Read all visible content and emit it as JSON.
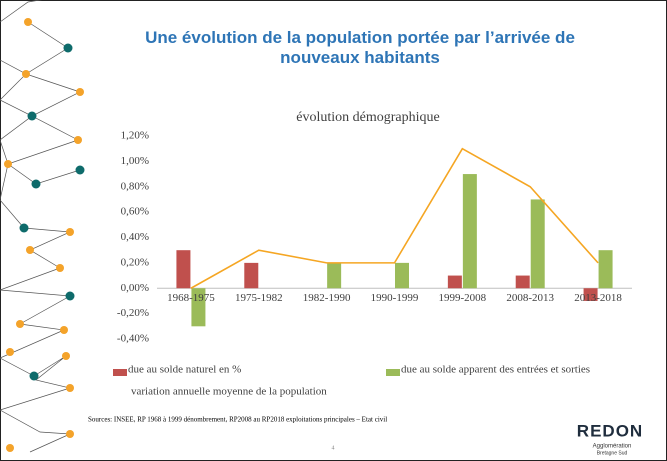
{
  "slide": {
    "title": "Une évolution de la population portée par l’arrivée de nouveaux habitants",
    "sources": "Sources: INSEE, RP 1968 à 1999 dénombrement, RP2008 au RP2018 exploitations principales – Etat civil",
    "page_number": "4",
    "logo": {
      "name": "REDON",
      "line1": "Agglomération",
      "line2": "Bretagne Sud"
    }
  },
  "chart_data": {
    "type": "bar",
    "title": "évolution démographique",
    "categories": [
      "1968-1975",
      "1975-1982",
      "1982-1990",
      "1990-1999",
      "1999-2008",
      "2008-2013",
      "2013-2018"
    ],
    "series": [
      {
        "name": "due au solde naturel en %",
        "color": "#c0504d",
        "type": "bar",
        "values": [
          0.3,
          0.2,
          0,
          0,
          0.1,
          0.1,
          -0.1
        ]
      },
      {
        "name": "due au solde apparent des entrées et sorties",
        "color": "#9bbb59",
        "type": "bar",
        "values": [
          -0.3,
          0,
          0.2,
          0.2,
          0.9,
          0.7,
          0.3
        ]
      },
      {
        "name": "variation annuelle moyenne de la population",
        "color": "#f5a623",
        "type": "line",
        "values": [
          0,
          0.3,
          0.2,
          0.2,
          1.1,
          0.8,
          0.2
        ]
      }
    ],
    "ylim": [
      -0.4,
      1.2
    ],
    "yticks": [
      {
        "value": -0.4,
        "label": "-0,40%"
      },
      {
        "value": -0.2,
        "label": "-0,20%"
      },
      {
        "value": 0,
        "label": "0,00%"
      },
      {
        "value": 0.2,
        "label": "0,20%"
      },
      {
        "value": 0.4,
        "label": "0,40%"
      },
      {
        "value": 0.6,
        "label": "0,60%"
      },
      {
        "value": 0.8,
        "label": "0,80%"
      },
      {
        "value": 1.0,
        "label": "1,00%"
      },
      {
        "value": 1.2,
        "label": "1,20%"
      }
    ],
    "grid": false
  }
}
